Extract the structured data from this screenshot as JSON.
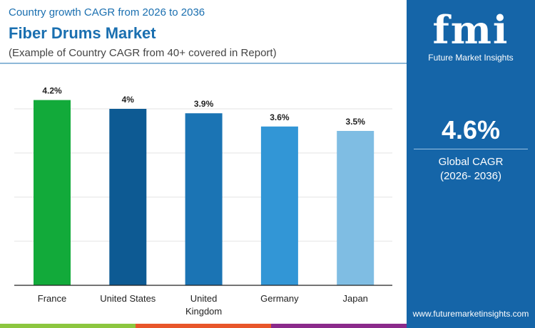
{
  "header": {
    "subtitle": "Country growth CAGR from 2026 to 2036",
    "title": "Fiber Drums Market",
    "note": "(Example of Country CAGR from 40+ covered in Report)"
  },
  "panel": {
    "logo": "fmi",
    "brand": "Future Market Insights",
    "global_value": "4.6%",
    "global_label": "Global CAGR",
    "global_period": "(2026- 2036)",
    "url": "www.futuremarketinsights.com"
  },
  "colors": {
    "panel": "#1565a8",
    "stripes": [
      "#8cc63f",
      "#e8562a",
      "#8b2a8b"
    ]
  },
  "chart_data": {
    "type": "bar",
    "categories": [
      "France",
      "United States",
      "United Kingdom",
      "Germany",
      "Japan"
    ],
    "values": [
      4.2,
      4.0,
      3.9,
      3.6,
      3.5
    ],
    "labels": [
      "4.2%",
      "4%",
      "3.9%",
      "3.6%",
      "3.5%"
    ],
    "colors": [
      "#12aa3a",
      "#0d5a93",
      "#1b74b4",
      "#3296d6",
      "#7fbde3"
    ],
    "ylim": [
      0,
      4.5
    ],
    "grid": true
  }
}
